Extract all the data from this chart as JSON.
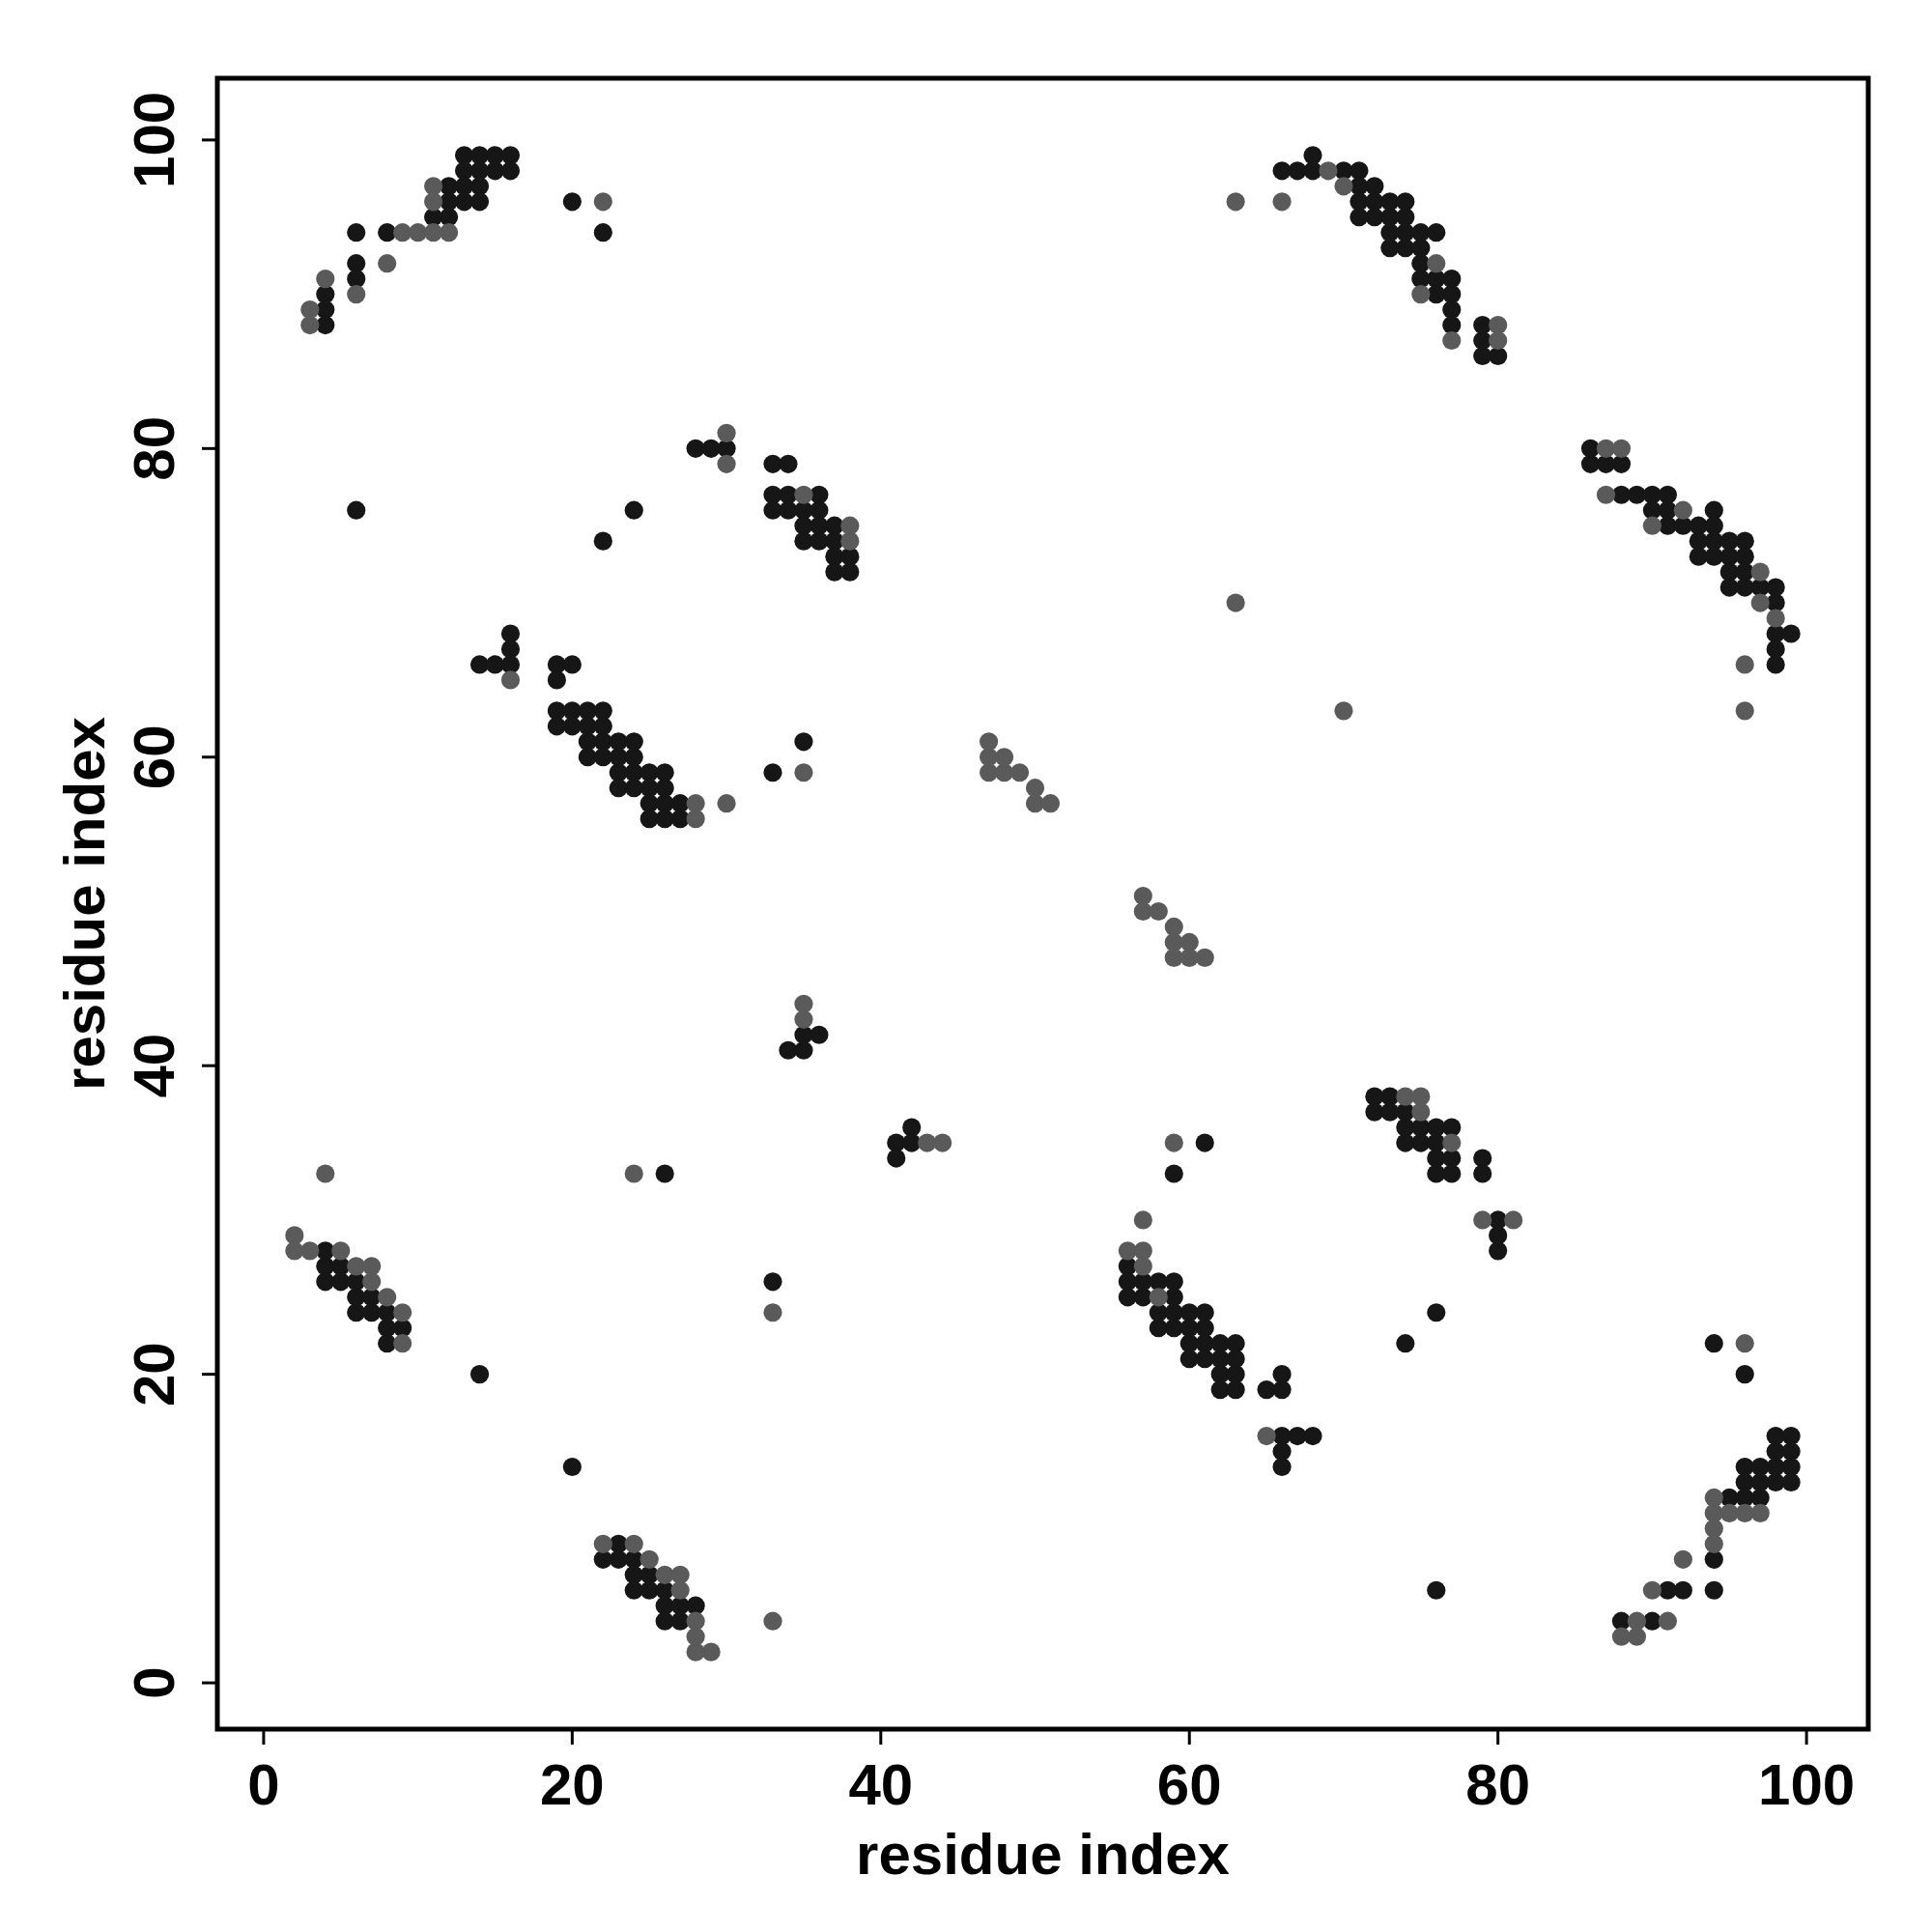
{
  "chart_data": {
    "type": "scatter",
    "xlabel": "residue index",
    "ylabel": "residue index",
    "xlim": [
      -3,
      104
    ],
    "ylim": [
      -3,
      104
    ],
    "xticks": [
      0,
      20,
      40,
      60,
      80,
      100
    ],
    "yticks": [
      0,
      20,
      40,
      60,
      80,
      100
    ],
    "grid": false,
    "marker": "circle",
    "series": [
      {
        "color": "#161616",
        "x": [
          13,
          14,
          15,
          16,
          13,
          14,
          15,
          16,
          12,
          13,
          14,
          12,
          13,
          14,
          20,
          11,
          12,
          6,
          8,
          22,
          6,
          6,
          4,
          4,
          4,
          6,
          24,
          22,
          28,
          29,
          30,
          33,
          34,
          33,
          34,
          36,
          33,
          34,
          35,
          36,
          35,
          36,
          37,
          35,
          36,
          37,
          37,
          38,
          37,
          38,
          16,
          16,
          14,
          15,
          16,
          19,
          20,
          19,
          19,
          20,
          21,
          22,
          19,
          20,
          21,
          22,
          21,
          22,
          23,
          24,
          35,
          21,
          22,
          23,
          24,
          23,
          24,
          25,
          26,
          33,
          23,
          24,
          25,
          26,
          25,
          26,
          27,
          25,
          26,
          27,
          35,
          36,
          34,
          35,
          42,
          41,
          42,
          41,
          61,
          59,
          68,
          66,
          67,
          68,
          70,
          71,
          71,
          72,
          71,
          72,
          73,
          74,
          71,
          72,
          73,
          74,
          73,
          74,
          75,
          76,
          73,
          74,
          75,
          75,
          75,
          76,
          77,
          76,
          77,
          77,
          77,
          79,
          79,
          79,
          80,
          86,
          86,
          87,
          88,
          88,
          89,
          90,
          91,
          90,
          91,
          94,
          91,
          92,
          93,
          94,
          93,
          94,
          95,
          96,
          93,
          94,
          95,
          96,
          95,
          96,
          95,
          96,
          97,
          98,
          98,
          98,
          99,
          98,
          98,
          26,
          4,
          4,
          5,
          4,
          5,
          6,
          6,
          7,
          6,
          7,
          8,
          8,
          9,
          8,
          33,
          14,
          20,
          23,
          22,
          23,
          24,
          24,
          25,
          24,
          25,
          26,
          26,
          27,
          28,
          26,
          27,
          56,
          56,
          57,
          58,
          59,
          56,
          57,
          59,
          58,
          59,
          60,
          61,
          58,
          59,
          60,
          61,
          60,
          61,
          62,
          63,
          60,
          61,
          62,
          63,
          62,
          63,
          66,
          62,
          63,
          65,
          66,
          66,
          67,
          68,
          66,
          66,
          72,
          73,
          72,
          73,
          74,
          74,
          75,
          76,
          77,
          74,
          75,
          76,
          76,
          77,
          79,
          76,
          77,
          79,
          80,
          80,
          80,
          76,
          74,
          94,
          96,
          76,
          98,
          99,
          98,
          99,
          96,
          97,
          98,
          99,
          96,
          97,
          98,
          99,
          95,
          96,
          97,
          94,
          91,
          92,
          94,
          88,
          90
        ],
        "values": [
          99,
          99,
          99,
          99,
          98,
          98,
          98,
          98,
          97,
          97,
          97,
          96,
          96,
          96,
          96,
          95,
          95,
          94,
          94,
          94,
          92,
          91,
          90,
          89,
          88,
          76,
          76,
          74,
          80,
          80,
          80,
          79,
          79,
          77,
          77,
          77,
          76,
          76,
          76,
          76,
          75,
          75,
          75,
          74,
          74,
          74,
          73,
          73,
          72,
          72,
          68,
          67,
          66,
          66,
          66,
          66,
          66,
          65,
          63,
          63,
          63,
          63,
          62,
          62,
          62,
          62,
          61,
          61,
          61,
          61,
          61,
          60,
          60,
          60,
          60,
          59,
          59,
          59,
          59,
          59,
          58,
          58,
          58,
          58,
          57,
          57,
          57,
          56,
          56,
          56,
          42,
          42,
          41,
          41,
          36,
          35,
          35,
          34,
          35,
          33,
          99,
          98,
          98,
          98,
          98,
          98,
          97,
          97,
          96,
          96,
          96,
          96,
          95,
          95,
          95,
          95,
          94,
          94,
          94,
          94,
          93,
          93,
          93,
          92,
          91,
          91,
          91,
          90,
          90,
          89,
          88,
          88,
          87,
          86,
          86,
          80,
          79,
          79,
          79,
          77,
          77,
          77,
          77,
          76,
          76,
          76,
          75,
          75,
          75,
          75,
          74,
          74,
          74,
          74,
          73,
          73,
          73,
          73,
          72,
          72,
          71,
          71,
          71,
          71,
          70,
          68,
          68,
          67,
          66,
          33,
          28,
          27,
          27,
          26,
          26,
          26,
          25,
          25,
          24,
          24,
          24,
          23,
          23,
          22,
          26,
          20,
          14,
          9,
          8,
          8,
          8,
          7,
          7,
          6,
          6,
          6,
          5,
          5,
          5,
          4,
          4,
          27,
          26,
          26,
          26,
          26,
          25,
          25,
          25,
          24,
          24,
          24,
          24,
          23,
          23,
          23,
          23,
          22,
          22,
          22,
          22,
          21,
          21,
          21,
          21,
          20,
          20,
          20,
          19,
          19,
          19,
          19,
          16,
          16,
          16,
          15,
          14,
          38,
          38,
          37,
          37,
          37,
          36,
          36,
          36,
          36,
          35,
          35,
          35,
          34,
          34,
          34,
          33,
          33,
          33,
          30,
          29,
          28,
          24,
          22,
          22,
          20,
          6,
          16,
          16,
          15,
          15,
          14,
          14,
          14,
          14,
          13,
          13,
          13,
          13,
          12,
          12,
          12,
          8,
          6,
          6,
          6,
          4,
          4
        ]
      },
      {
        "color": "#5a5a5a",
        "x": [
          3,
          3,
          4,
          6,
          8,
          9,
          10,
          11,
          12,
          11,
          11,
          22,
          30,
          30,
          35,
          38,
          38,
          16,
          35,
          28,
          28,
          30,
          47,
          47,
          48,
          47,
          48,
          49,
          50,
          50,
          51,
          57,
          57,
          58,
          59,
          59,
          60,
          59,
          60,
          61,
          35,
          35,
          43,
          44,
          59,
          63,
          66,
          69,
          70,
          76,
          77,
          75,
          80,
          80,
          87,
          88,
          87,
          92,
          90,
          97,
          97,
          98,
          96,
          96,
          70,
          63,
          4,
          24,
          2,
          2,
          3,
          5,
          6,
          7,
          7,
          8,
          9,
          9,
          33,
          22,
          24,
          25,
          26,
          27,
          27,
          28,
          28,
          28,
          29,
          33,
          57,
          56,
          57,
          57,
          58,
          65,
          74,
          75,
          75,
          77,
          79,
          81,
          96,
          94,
          94,
          95,
          96,
          97,
          94,
          94,
          92,
          90,
          88,
          89,
          89,
          91
        ],
        "values": [
          88,
          89,
          91,
          90,
          92,
          94,
          94,
          94,
          94,
          96,
          97,
          96,
          81,
          79,
          77,
          75,
          74,
          65,
          59,
          57,
          56,
          57,
          61,
          60,
          60,
          59,
          59,
          59,
          58,
          57,
          57,
          51,
          50,
          50,
          49,
          48,
          48,
          47,
          47,
          47,
          44,
          43,
          35,
          35,
          35,
          96,
          96,
          98,
          97,
          92,
          87,
          90,
          88,
          87,
          80,
          80,
          77,
          76,
          75,
          72,
          70,
          69,
          66,
          63,
          63,
          70,
          33,
          33,
          29,
          28,
          28,
          28,
          27,
          27,
          26,
          25,
          24,
          22,
          24,
          9,
          9,
          8,
          7,
          7,
          6,
          4,
          3,
          2,
          2,
          4,
          30,
          28,
          28,
          27,
          25,
          16,
          38,
          38,
          37,
          35,
          30,
          30,
          22,
          12,
          11,
          11,
          11,
          11,
          10,
          9,
          8,
          6,
          3,
          3,
          4,
          4
        ]
      }
    ]
  }
}
